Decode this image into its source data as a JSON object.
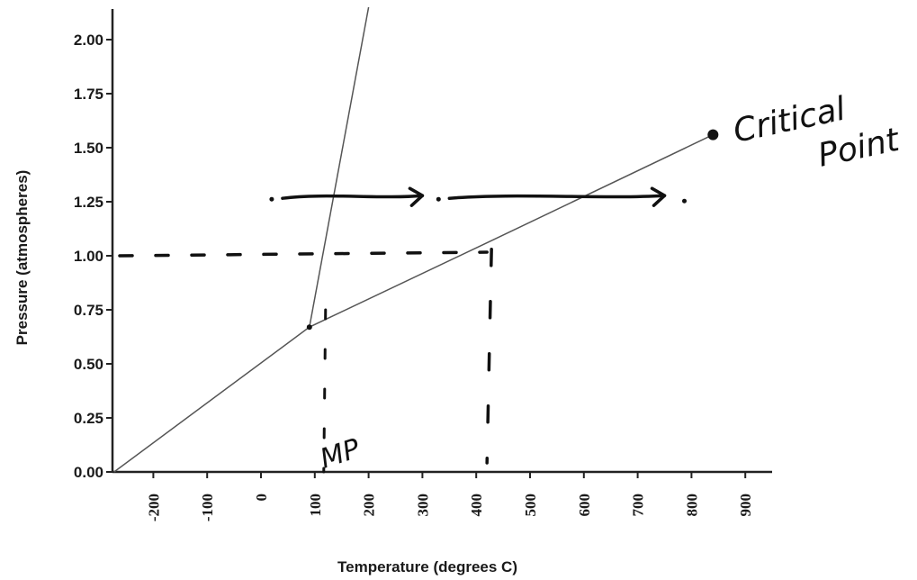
{
  "chart_data": {
    "type": "line",
    "title": "",
    "xlabel": "Temperature (degrees C)",
    "ylabel": "Pressure (atmospheres)",
    "xlim": [
      -273,
      950
    ],
    "ylim": [
      0,
      2.1
    ],
    "x_ticks": [
      "-200",
      "-100",
      "0",
      "100",
      "200",
      "300",
      "400",
      "500",
      "600",
      "700",
      "800",
      "900"
    ],
    "y_ticks": [
      "0.00",
      "0.25",
      "0.50",
      "0.75",
      "1.00",
      "1.25",
      "1.50",
      "1.75",
      "2.00"
    ],
    "grid": false,
    "series": [
      {
        "points": [
          [
            -273,
            0.0
          ],
          [
            90,
            0.67
          ],
          [
            420,
            1.06
          ],
          [
            840,
            1.56
          ]
        ]
      },
      {
        "points": [
          [
            90,
            0.67
          ],
          [
            200,
            2.15
          ]
        ]
      }
    ],
    "annotations": {
      "triple_point": [
        90,
        0.67
      ],
      "critical_point": {
        "label_line1": "Critical",
        "label_line2": "Point",
        "x": 840,
        "y": 1.56
      },
      "melting_point": {
        "label": "MP",
        "x": 120
      },
      "boiling_point_x": 420,
      "dashed_pressure": 1.0,
      "arrow_pressure": 1.27,
      "arrow_segments": [
        [
          40,
          300
        ],
        [
          350,
          750
        ]
      ]
    },
    "colors": {
      "line": "#555555",
      "ink": "#111111",
      "axis": "#222222"
    }
  }
}
